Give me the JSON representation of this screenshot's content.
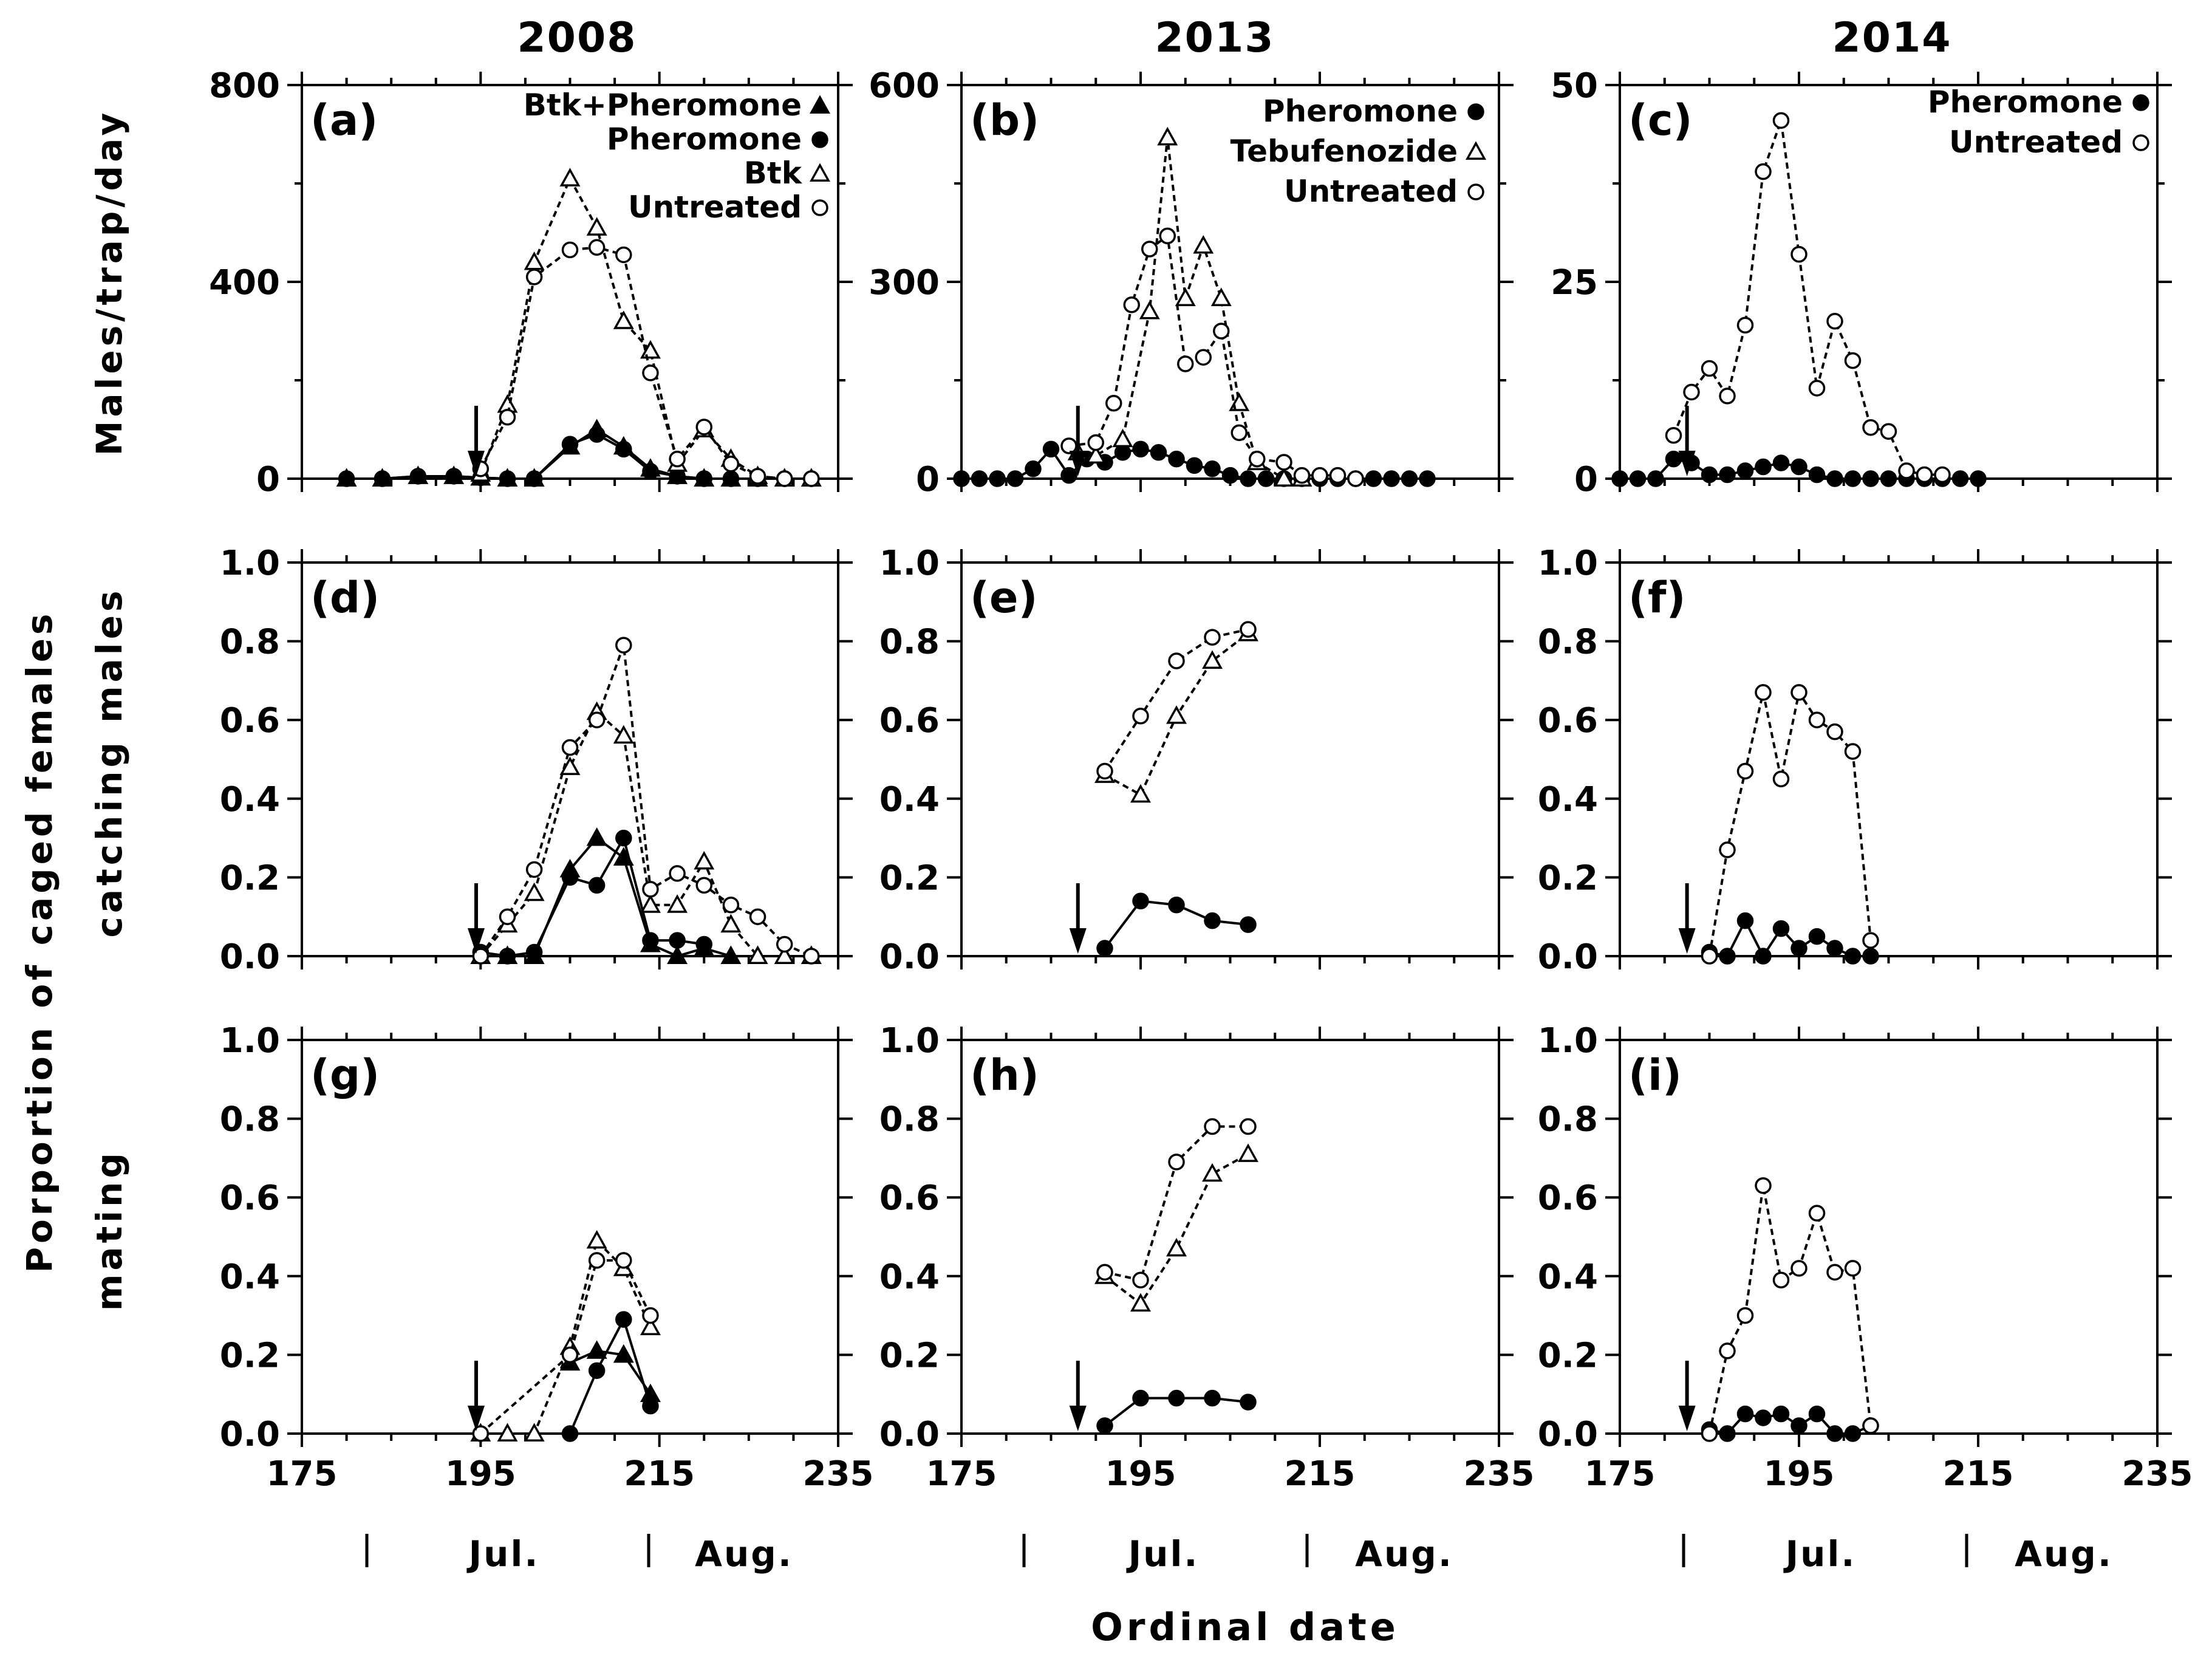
{
  "figure": {
    "column_titles": [
      "2008",
      "2013",
      "2014"
    ],
    "y_labels": {
      "row1": "Males/trap/day",
      "row23_line1": "Porportion of caged females",
      "row2_line2": "catching males",
      "row3_line2": "mating"
    },
    "x_label": "Ordinal date",
    "x_ticks": [
      "175",
      "195",
      "215",
      "235"
    ],
    "months": [
      "Jul.",
      "Aug."
    ],
    "colors": {
      "line": "#000000",
      "background": "#ffffff"
    }
  },
  "chart_data": [
    {
      "panel": "(a)",
      "year": "2008",
      "type": "line",
      "ylim": [
        0,
        800
      ],
      "yticks": [
        0,
        400,
        800
      ],
      "arrow_x": 194.5,
      "month_bounds": [
        179,
        212
      ],
      "series": [
        {
          "name": "Btk+Pheromone",
          "marker": "filled-triangle",
          "dashed": false,
          "x": [
            180,
            184,
            188,
            192,
            195,
            198,
            201,
            205,
            208,
            211,
            214,
            217,
            220,
            223,
            226,
            229,
            232
          ],
          "y": [
            0,
            0,
            5,
            5,
            2,
            0,
            0,
            65,
            100,
            65,
            20,
            5,
            0,
            0,
            0,
            0,
            0
          ]
        },
        {
          "name": "Pheromone",
          "marker": "filled-circle",
          "dashed": false,
          "x": [
            180,
            184,
            188,
            192,
            195,
            198,
            201,
            205,
            208,
            211,
            214,
            217,
            220,
            223,
            226,
            229,
            232
          ],
          "y": [
            0,
            0,
            5,
            5,
            2,
            0,
            0,
            70,
            90,
            60,
            15,
            5,
            0,
            0,
            0,
            0,
            0
          ]
        },
        {
          "name": "Btk",
          "marker": "open-triangle",
          "dashed": true,
          "x": [
            195,
            198,
            201,
            205,
            208,
            211,
            214,
            217,
            220,
            223,
            226,
            229,
            232
          ],
          "y": [
            10,
            150,
            440,
            610,
            510,
            320,
            260,
            30,
            100,
            40,
            5,
            0,
            0
          ]
        },
        {
          "name": "Untreated",
          "marker": "open-circle",
          "dashed": true,
          "x": [
            195,
            198,
            201,
            205,
            208,
            211,
            214,
            217,
            220,
            223,
            226,
            229,
            232
          ],
          "y": [
            20,
            125,
            410,
            465,
            470,
            455,
            215,
            40,
            105,
            30,
            5,
            0,
            0
          ]
        }
      ]
    },
    {
      "panel": "(b)",
      "year": "2013",
      "type": "line",
      "ylim": [
        0,
        600
      ],
      "yticks": [
        0,
        300,
        600
      ],
      "arrow_x": 188,
      "month_bounds": [
        182,
        213
      ],
      "series": [
        {
          "name": "Pheromone",
          "marker": "filled-circle",
          "dashed": false,
          "x": [
            175,
            177,
            179,
            181,
            183,
            185,
            187,
            189,
            191,
            193,
            195,
            197,
            199,
            201,
            203,
            205,
            207,
            209,
            211,
            213,
            215,
            217,
            219,
            221,
            223,
            225,
            227
          ],
          "y": [
            0,
            0,
            0,
            0,
            15,
            45,
            5,
            30,
            25,
            40,
            45,
            40,
            30,
            20,
            15,
            5,
            0,
            0,
            0,
            0,
            0,
            0,
            0,
            0,
            0,
            0,
            0
          ]
        },
        {
          "name": "Tebufenozide",
          "marker": "open-triangle",
          "dashed": true,
          "x": [
            188,
            190,
            193,
            196,
            198,
            200,
            202,
            204,
            206,
            208,
            211,
            213
          ],
          "y": [
            40,
            35,
            60,
            255,
            520,
            275,
            355,
            275,
            115,
            25,
            0,
            0
          ]
        },
        {
          "name": "Untreated",
          "marker": "open-circle",
          "dashed": true,
          "x": [
            187,
            190,
            192,
            194,
            196,
            198,
            200,
            202,
            204,
            206,
            208,
            211,
            213,
            215,
            217,
            219
          ],
          "y": [
            50,
            55,
            115,
            265,
            350,
            370,
            175,
            185,
            225,
            70,
            30,
            25,
            5,
            5,
            5,
            0
          ]
        }
      ]
    },
    {
      "panel": "(c)",
      "year": "2014",
      "type": "line",
      "ylim": [
        0,
        50
      ],
      "yticks": [
        0,
        25,
        50
      ],
      "arrow_x": 182.5,
      "month_bounds": [
        182,
        213
      ],
      "series": [
        {
          "name": "Pheromone",
          "marker": "filled-circle",
          "dashed": false,
          "x": [
            175,
            177,
            179,
            181,
            183,
            185,
            187,
            189,
            191,
            193,
            195,
            197,
            199,
            201,
            203,
            205,
            207,
            209,
            211,
            213,
            215
          ],
          "y": [
            0,
            0,
            0,
            2.5,
            2,
            0.5,
            0.5,
            1,
            1.5,
            2,
            1.5,
            0.5,
            0,
            0,
            0,
            0,
            0,
            0,
            0,
            0,
            0
          ]
        },
        {
          "name": "Untreated",
          "marker": "open-circle",
          "dashed": true,
          "x": [
            181,
            183,
            185,
            187,
            189,
            191,
            193,
            195,
            197,
            199,
            201,
            203,
            205,
            207,
            209,
            211
          ],
          "y": [
            5.5,
            11,
            14,
            10.5,
            19.5,
            39,
            45.5,
            28.5,
            11.5,
            20,
            15,
            6.5,
            6,
            1,
            0.5,
            0.5
          ]
        }
      ]
    },
    {
      "panel": "(d)",
      "year": "2008",
      "type": "line",
      "ylim": [
        0,
        1
      ],
      "yticks": [
        "0.0",
        "0.2",
        "0.4",
        "0.6",
        "0.8",
        "1.0"
      ],
      "arrow_x": 194.5,
      "series": [
        {
          "name": "Btk+Pheromone",
          "marker": "filled-triangle",
          "dashed": false,
          "x": [
            195,
            198,
            201,
            205,
            208,
            211,
            214,
            217,
            220,
            223,
            226,
            229,
            232
          ],
          "y": [
            0,
            0,
            0,
            0.22,
            0.3,
            0.25,
            0.03,
            0,
            0.02,
            0,
            0,
            0,
            0
          ]
        },
        {
          "name": "Pheromone",
          "marker": "filled-circle",
          "dashed": false,
          "x": [
            195,
            198,
            201,
            205,
            208,
            211,
            214,
            217,
            220
          ],
          "y": [
            0.01,
            0,
            0.01,
            0.2,
            0.18,
            0.3,
            0.04,
            0.04,
            0.03
          ]
        },
        {
          "name": "Btk",
          "marker": "open-triangle",
          "dashed": true,
          "x": [
            195,
            198,
            201,
            205,
            208,
            211,
            214,
            217,
            220,
            223,
            226,
            229,
            232
          ],
          "y": [
            0,
            0.08,
            0.16,
            0.48,
            0.62,
            0.56,
            0.13,
            0.13,
            0.24,
            0.08,
            0,
            0,
            0
          ]
        },
        {
          "name": "Untreated",
          "marker": "open-circle",
          "dashed": true,
          "x": [
            195,
            198,
            201,
            205,
            208,
            211,
            214,
            217,
            220,
            223,
            226,
            229,
            232
          ],
          "y": [
            0,
            0.1,
            0.22,
            0.53,
            0.6,
            0.79,
            0.17,
            0.21,
            0.18,
            0.13,
            0.1,
            0.03,
            0
          ]
        }
      ]
    },
    {
      "panel": "(e)",
      "year": "2013",
      "type": "line",
      "ylim": [
        0,
        1
      ],
      "yticks": [
        "0.0",
        "0.2",
        "0.4",
        "0.6",
        "0.8",
        "1.0"
      ],
      "arrow_x": 188,
      "series": [
        {
          "name": "Pheromone",
          "marker": "filled-circle",
          "dashed": false,
          "x": [
            191,
            195,
            199,
            203,
            207
          ],
          "y": [
            0.02,
            0.14,
            0.13,
            0.09,
            0.08
          ]
        },
        {
          "name": "Tebufenozide",
          "marker": "open-triangle",
          "dashed": true,
          "x": [
            191,
            195,
            199,
            203,
            207
          ],
          "y": [
            0.46,
            0.41,
            0.61,
            0.75,
            0.82
          ]
        },
        {
          "name": "Untreated",
          "marker": "open-circle",
          "dashed": true,
          "x": [
            191,
            195,
            199,
            203,
            207
          ],
          "y": [
            0.47,
            0.61,
            0.75,
            0.81,
            0.83
          ]
        }
      ]
    },
    {
      "panel": "(f)",
      "year": "2014",
      "type": "line",
      "ylim": [
        0,
        1
      ],
      "yticks": [
        "0.0",
        "0.2",
        "0.4",
        "0.6",
        "0.8",
        "1.0"
      ],
      "arrow_x": 182.5,
      "series": [
        {
          "name": "Pheromone",
          "marker": "filled-circle",
          "dashed": false,
          "x": [
            185,
            187,
            189,
            191,
            193,
            195,
            197,
            199,
            201,
            203
          ],
          "y": [
            0.01,
            0,
            0.09,
            0,
            0.07,
            0.02,
            0.05,
            0.02,
            0,
            0
          ]
        },
        {
          "name": "Untreated",
          "marker": "open-circle",
          "dashed": true,
          "x": [
            185,
            187,
            189,
            191,
            193,
            195,
            197,
            199,
            201,
            203
          ],
          "y": [
            0,
            0.27,
            0.47,
            0.67,
            0.45,
            0.67,
            0.6,
            0.57,
            0.52,
            0.04
          ]
        }
      ]
    },
    {
      "panel": "(g)",
      "year": "2008",
      "type": "line",
      "ylim": [
        0,
        1
      ],
      "yticks": [
        "0.0",
        "0.2",
        "0.4",
        "0.6",
        "0.8",
        "1.0"
      ],
      "arrow_x": 194.5,
      "series": [
        {
          "name": "Btk+Pheromone",
          "marker": "filled-triangle",
          "dashed": false,
          "x": [
            205,
            208,
            211,
            214
          ],
          "y": [
            0.18,
            0.21,
            0.2,
            0.1
          ]
        },
        {
          "name": "Pheromone",
          "marker": "filled-circle",
          "dashed": false,
          "x": [
            205,
            208,
            211,
            214
          ],
          "y": [
            0,
            0.16,
            0.29,
            0.07
          ]
        },
        {
          "name": "Btk",
          "marker": "open-triangle",
          "dashed": true,
          "x": [
            195,
            198,
            201,
            205,
            208,
            211,
            214
          ],
          "y": [
            0,
            0,
            0,
            0.22,
            0.49,
            0.42,
            0.27
          ]
        },
        {
          "name": "Untreated",
          "marker": "open-circle",
          "dashed": true,
          "x": [
            195,
            205,
            208,
            211,
            214
          ],
          "y": [
            0,
            0.2,
            0.44,
            0.44,
            0.3
          ]
        }
      ]
    },
    {
      "panel": "(h)",
      "year": "2013",
      "type": "line",
      "ylim": [
        0,
        1
      ],
      "yticks": [
        "0.0",
        "0.2",
        "0.4",
        "0.6",
        "0.8",
        "1.0"
      ],
      "arrow_x": 188,
      "series": [
        {
          "name": "Pheromone",
          "marker": "filled-circle",
          "dashed": false,
          "x": [
            191,
            195,
            199,
            203,
            207
          ],
          "y": [
            0.02,
            0.09,
            0.09,
            0.09,
            0.08
          ]
        },
        {
          "name": "Tebufenozide",
          "marker": "open-triangle",
          "dashed": true,
          "x": [
            191,
            195,
            199,
            203,
            207
          ],
          "y": [
            0.4,
            0.33,
            0.47,
            0.66,
            0.71
          ]
        },
        {
          "name": "Untreated",
          "marker": "open-circle",
          "dashed": true,
          "x": [
            191,
            195,
            199,
            203,
            207
          ],
          "y": [
            0.41,
            0.39,
            0.69,
            0.78,
            0.78
          ]
        }
      ]
    },
    {
      "panel": "(i)",
      "year": "2014",
      "type": "line",
      "ylim": [
        0,
        1
      ],
      "yticks": [
        "0.0",
        "0.2",
        "0.4",
        "0.6",
        "0.8",
        "1.0"
      ],
      "arrow_x": 182.5,
      "series": [
        {
          "name": "Pheromone",
          "marker": "filled-circle",
          "dashed": false,
          "x": [
            185,
            187,
            189,
            191,
            193,
            195,
            197,
            199,
            201,
            203
          ],
          "y": [
            0.01,
            0,
            0.05,
            0.04,
            0.05,
            0.02,
            0.05,
            0,
            0,
            0.02
          ]
        },
        {
          "name": "Untreated",
          "marker": "open-circle",
          "dashed": true,
          "x": [
            185,
            187,
            189,
            191,
            193,
            195,
            197,
            199,
            201,
            203
          ],
          "y": [
            0,
            0.21,
            0.3,
            0.63,
            0.39,
            0.42,
            0.56,
            0.41,
            0.42,
            0.02
          ]
        }
      ]
    }
  ]
}
